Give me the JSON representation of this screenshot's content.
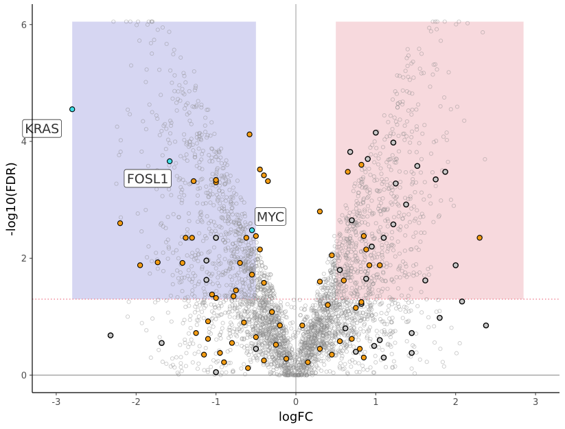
{
  "chart_data": {
    "type": "scatter",
    "xlabel": "logFC",
    "ylabel": "-log10(FDR)",
    "xlim": [
      -3.3,
      3.3
    ],
    "ylim": [
      -0.3,
      6.35
    ],
    "x_ticks": [
      "-3",
      "-2",
      "-1",
      "0",
      "1",
      "2",
      "3"
    ],
    "y_ticks": [
      "0",
      "2",
      "4",
      "6"
    ],
    "grid": false,
    "fdr_threshold": 1.3,
    "logfc_threshold": 0.5,
    "shaded_regions": [
      {
        "side": "down",
        "x": [
          -2.8,
          -0.5
        ],
        "y": [
          1.3,
          6.05
        ],
        "color": "#d6d6f2"
      },
      {
        "side": "up",
        "x": [
          0.5,
          2.85
        ],
        "y": [
          1.3,
          6.05
        ],
        "color": "#f7d9dd"
      }
    ],
    "colors": {
      "background_points": "#8a8a8a",
      "orange_points": "#f39c12",
      "highlight_points": "#40e0e8",
      "grey_filled_points": "#c8c8c8",
      "threshold_line": "#f08090",
      "zero_lines": "#9a9a9a"
    },
    "highlighted_genes": [
      {
        "label": "KRAS",
        "x": -2.8,
        "y": 4.55
      },
      {
        "label": "FOSL1",
        "x": -1.58,
        "y": 3.66
      },
      {
        "label": "MYC",
        "x": -0.55,
        "y": 2.48
      }
    ],
    "orange_points": [
      [
        -2.2,
        2.6
      ],
      [
        -1.95,
        1.88
      ],
      [
        -1.73,
        1.93
      ],
      [
        -1.42,
        1.92
      ],
      [
        -1.38,
        2.35
      ],
      [
        -1.3,
        2.35
      ],
      [
        -1.28,
        3.32
      ],
      [
        -1.0,
        3.3
      ],
      [
        -1.0,
        3.34
      ],
      [
        -0.58,
        4.12
      ],
      [
        -0.45,
        3.52
      ],
      [
        -0.4,
        3.42
      ],
      [
        -0.35,
        3.32
      ],
      [
        -0.62,
        2.35
      ],
      [
        -0.5,
        2.38
      ],
      [
        -0.45,
        2.15
      ],
      [
        -0.7,
        1.92
      ],
      [
        -0.55,
        1.72
      ],
      [
        -0.75,
        1.45
      ],
      [
        -0.78,
        1.35
      ],
      [
        -1.05,
        1.38
      ],
      [
        -1.0,
        1.32
      ],
      [
        -0.4,
        1.58
      ],
      [
        -0.3,
        1.08
      ],
      [
        -0.2,
        0.85
      ],
      [
        -0.25,
        0.52
      ],
      [
        -0.5,
        0.65
      ],
      [
        -0.8,
        0.55
      ],
      [
        -1.1,
        0.62
      ],
      [
        -1.25,
        0.72
      ],
      [
        -1.1,
        0.92
      ],
      [
        -1.15,
        0.35
      ],
      [
        -0.95,
        0.38
      ],
      [
        -0.9,
        0.22
      ],
      [
        -0.6,
        0.12
      ],
      [
        -0.4,
        0.25
      ],
      [
        -0.12,
        0.28
      ],
      [
        0.08,
        0.85
      ],
      [
        0.15,
        0.22
      ],
      [
        0.3,
        0.45
      ],
      [
        0.45,
        0.35
      ],
      [
        0.55,
        0.58
      ],
      [
        0.7,
        0.62
      ],
      [
        0.8,
        0.45
      ],
      [
        0.85,
        0.3
      ],
      [
        0.3,
        2.8
      ],
      [
        0.45,
        2.05
      ],
      [
        0.6,
        1.62
      ],
      [
        0.65,
        3.48
      ],
      [
        0.82,
        3.6
      ],
      [
        0.85,
        2.38
      ],
      [
        0.88,
        2.15
      ],
      [
        0.92,
        1.88
      ],
      [
        1.05,
        1.88
      ],
      [
        0.82,
        1.25
      ],
      [
        0.75,
        1.15
      ],
      [
        2.3,
        2.35
      ],
      [
        0.3,
        1.6
      ],
      [
        0.4,
        1.2
      ],
      [
        -0.65,
        0.9
      ]
    ],
    "grey_filled_points": [
      [
        -2.32,
        0.68
      ],
      [
        -1.68,
        0.55
      ],
      [
        -1.12,
        1.96
      ],
      [
        -1.12,
        1.63
      ],
      [
        -1.0,
        2.35
      ],
      [
        -1.0,
        0.05
      ],
      [
        1.0,
        4.15
      ],
      [
        1.22,
        3.98
      ],
      [
        1.25,
        3.28
      ],
      [
        1.38,
        2.92
      ],
      [
        1.1,
        2.35
      ],
      [
        1.22,
        2.58
      ],
      [
        1.52,
        3.58
      ],
      [
        1.75,
        3.35
      ],
      [
        1.87,
        3.48
      ],
      [
        1.62,
        1.62
      ],
      [
        2.0,
        1.88
      ],
      [
        2.08,
        1.26
      ],
      [
        2.38,
        0.85
      ],
      [
        1.8,
        0.98
      ],
      [
        1.45,
        0.72
      ],
      [
        1.45,
        0.38
      ],
      [
        1.05,
        0.6
      ],
      [
        0.98,
        0.5
      ],
      [
        1.1,
        0.3
      ],
      [
        0.68,
        3.82
      ],
      [
        0.9,
        3.7
      ],
      [
        0.55,
        1.8
      ],
      [
        0.62,
        0.8
      ],
      [
        0.75,
        0.4
      ],
      [
        0.95,
        2.2
      ],
      [
        0.88,
        1.65
      ],
      [
        0.7,
        2.65
      ],
      [
        0.82,
        1.22
      ],
      [
        -0.5,
        0.45
      ]
    ]
  }
}
